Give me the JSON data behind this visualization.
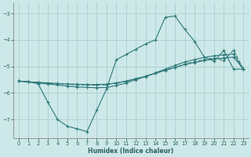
{
  "xlabel": "Humidex (Indice chaleur)",
  "bg_color": "#cde8e8",
  "grid_color": "#aad0d0",
  "line_color": "#2d7878",
  "xlim": [
    -0.5,
    23.5
  ],
  "ylim": [
    -7.7,
    -2.6
  ],
  "xticks": [
    0,
    1,
    2,
    3,
    4,
    5,
    6,
    7,
    8,
    9,
    10,
    11,
    12,
    13,
    14,
    15,
    16,
    17,
    18,
    19,
    20,
    21,
    22,
    23
  ],
  "yticks": [
    -7,
    -6,
    -5,
    -4,
    -3
  ],
  "line1_x": [
    0,
    1,
    2,
    3,
    4,
    5,
    6,
    7,
    8,
    9,
    10,
    11,
    12,
    13,
    14,
    15,
    16,
    17,
    18,
    19,
    20,
    21,
    22,
    23
  ],
  "line1_y": [
    -5.55,
    -5.58,
    -5.6,
    -5.62,
    -5.64,
    -5.66,
    -5.67,
    -5.68,
    -5.68,
    -5.67,
    -5.62,
    -5.55,
    -5.46,
    -5.37,
    -5.26,
    -5.15,
    -5.04,
    -4.93,
    -4.85,
    -4.78,
    -4.72,
    -4.68,
    -4.65,
    -5.1
  ],
  "line2_x": [
    0,
    1,
    2,
    3,
    4,
    5,
    6,
    7,
    8,
    9,
    10,
    11,
    12,
    13,
    14,
    15,
    16,
    17,
    18,
    19,
    20,
    21,
    22,
    23
  ],
  "line2_y": [
    -5.55,
    -5.58,
    -5.62,
    -5.66,
    -5.7,
    -5.74,
    -5.77,
    -5.79,
    -5.8,
    -5.79,
    -5.72,
    -5.62,
    -5.5,
    -5.38,
    -5.24,
    -5.1,
    -4.96,
    -4.83,
    -4.74,
    -4.66,
    -4.6,
    -4.56,
    -4.53,
    -5.1
  ],
  "line3_x": [
    0,
    1,
    2,
    3,
    4,
    5,
    6,
    7,
    8,
    9,
    10,
    11,
    12,
    13,
    14,
    15,
    16,
    17,
    18,
    19,
    20,
    21,
    22,
    23
  ],
  "line3_y": [
    -5.55,
    -5.58,
    -5.65,
    -6.35,
    -7.0,
    -7.25,
    -7.35,
    -7.45,
    -6.65,
    -5.85,
    -4.75,
    -4.55,
    -4.35,
    -4.15,
    -4.0,
    -3.15,
    -3.1,
    -3.6,
    -4.05,
    -4.65,
    -4.8,
    -4.4,
    -5.1,
    -5.1
  ],
  "line4_x": [
    0,
    1,
    2,
    3,
    4,
    5,
    6,
    7,
    8,
    9,
    10,
    11,
    12,
    13,
    14,
    15,
    16,
    17,
    18,
    19,
    20,
    21,
    22,
    23
  ],
  "line4_y": [
    -5.55,
    -5.58,
    -5.6,
    -5.63,
    -5.65,
    -5.67,
    -5.69,
    -5.7,
    -5.7,
    -5.69,
    -5.63,
    -5.56,
    -5.47,
    -5.37,
    -5.26,
    -5.14,
    -5.03,
    -4.91,
    -4.82,
    -4.75,
    -4.68,
    -4.78,
    -4.38,
    -5.1
  ]
}
